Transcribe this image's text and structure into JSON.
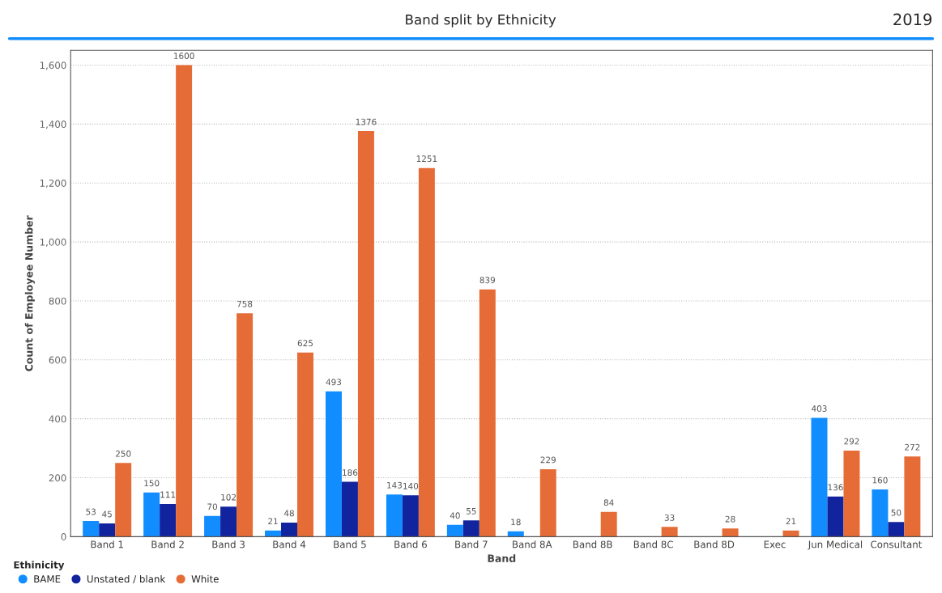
{
  "chart_data": {
    "type": "bar",
    "title": "Band split by Ethnicity",
    "xlabel": "Band",
    "ylabel": "Count of Employee Number",
    "legend_title": "Ethinicity",
    "annotations": [
      "2019"
    ],
    "categories": [
      "Band 1",
      "Band 2",
      "Band 3",
      "Band 4",
      "Band 5",
      "Band 6",
      "Band 7",
      "Band 8A",
      "Band 8B",
      "Band 8C",
      "Band 8D",
      "Exec",
      "Jun Medical",
      "Consultant"
    ],
    "series": [
      {
        "name": "BAME",
        "color": "#118dff",
        "values": [
          53,
          150,
          70,
          21,
          493,
          143,
          40,
          18,
          null,
          null,
          null,
          null,
          403,
          160
        ]
      },
      {
        "name": "Unstated / blank",
        "color": "#12239e",
        "values": [
          45,
          111,
          102,
          48,
          186,
          140,
          55,
          null,
          null,
          null,
          null,
          null,
          136,
          50
        ]
      },
      {
        "name": "White",
        "color": "#e66c37",
        "values": [
          250,
          1600,
          758,
          625,
          1376,
          1251,
          839,
          229,
          84,
          33,
          28,
          21,
          292,
          272
        ]
      }
    ],
    "ylim": [
      0,
      1650
    ],
    "yticks": [
      0,
      200,
      400,
      600,
      800,
      {
        "value": 1000,
        "label": "1,000"
      },
      {
        "value": 1200,
        "label": "1,200"
      },
      {
        "value": 1400,
        "label": "1,400"
      },
      {
        "value": 1600,
        "label": "1,600"
      }
    ],
    "grid": "y",
    "legend": "bottom left",
    "data_labels": true
  }
}
